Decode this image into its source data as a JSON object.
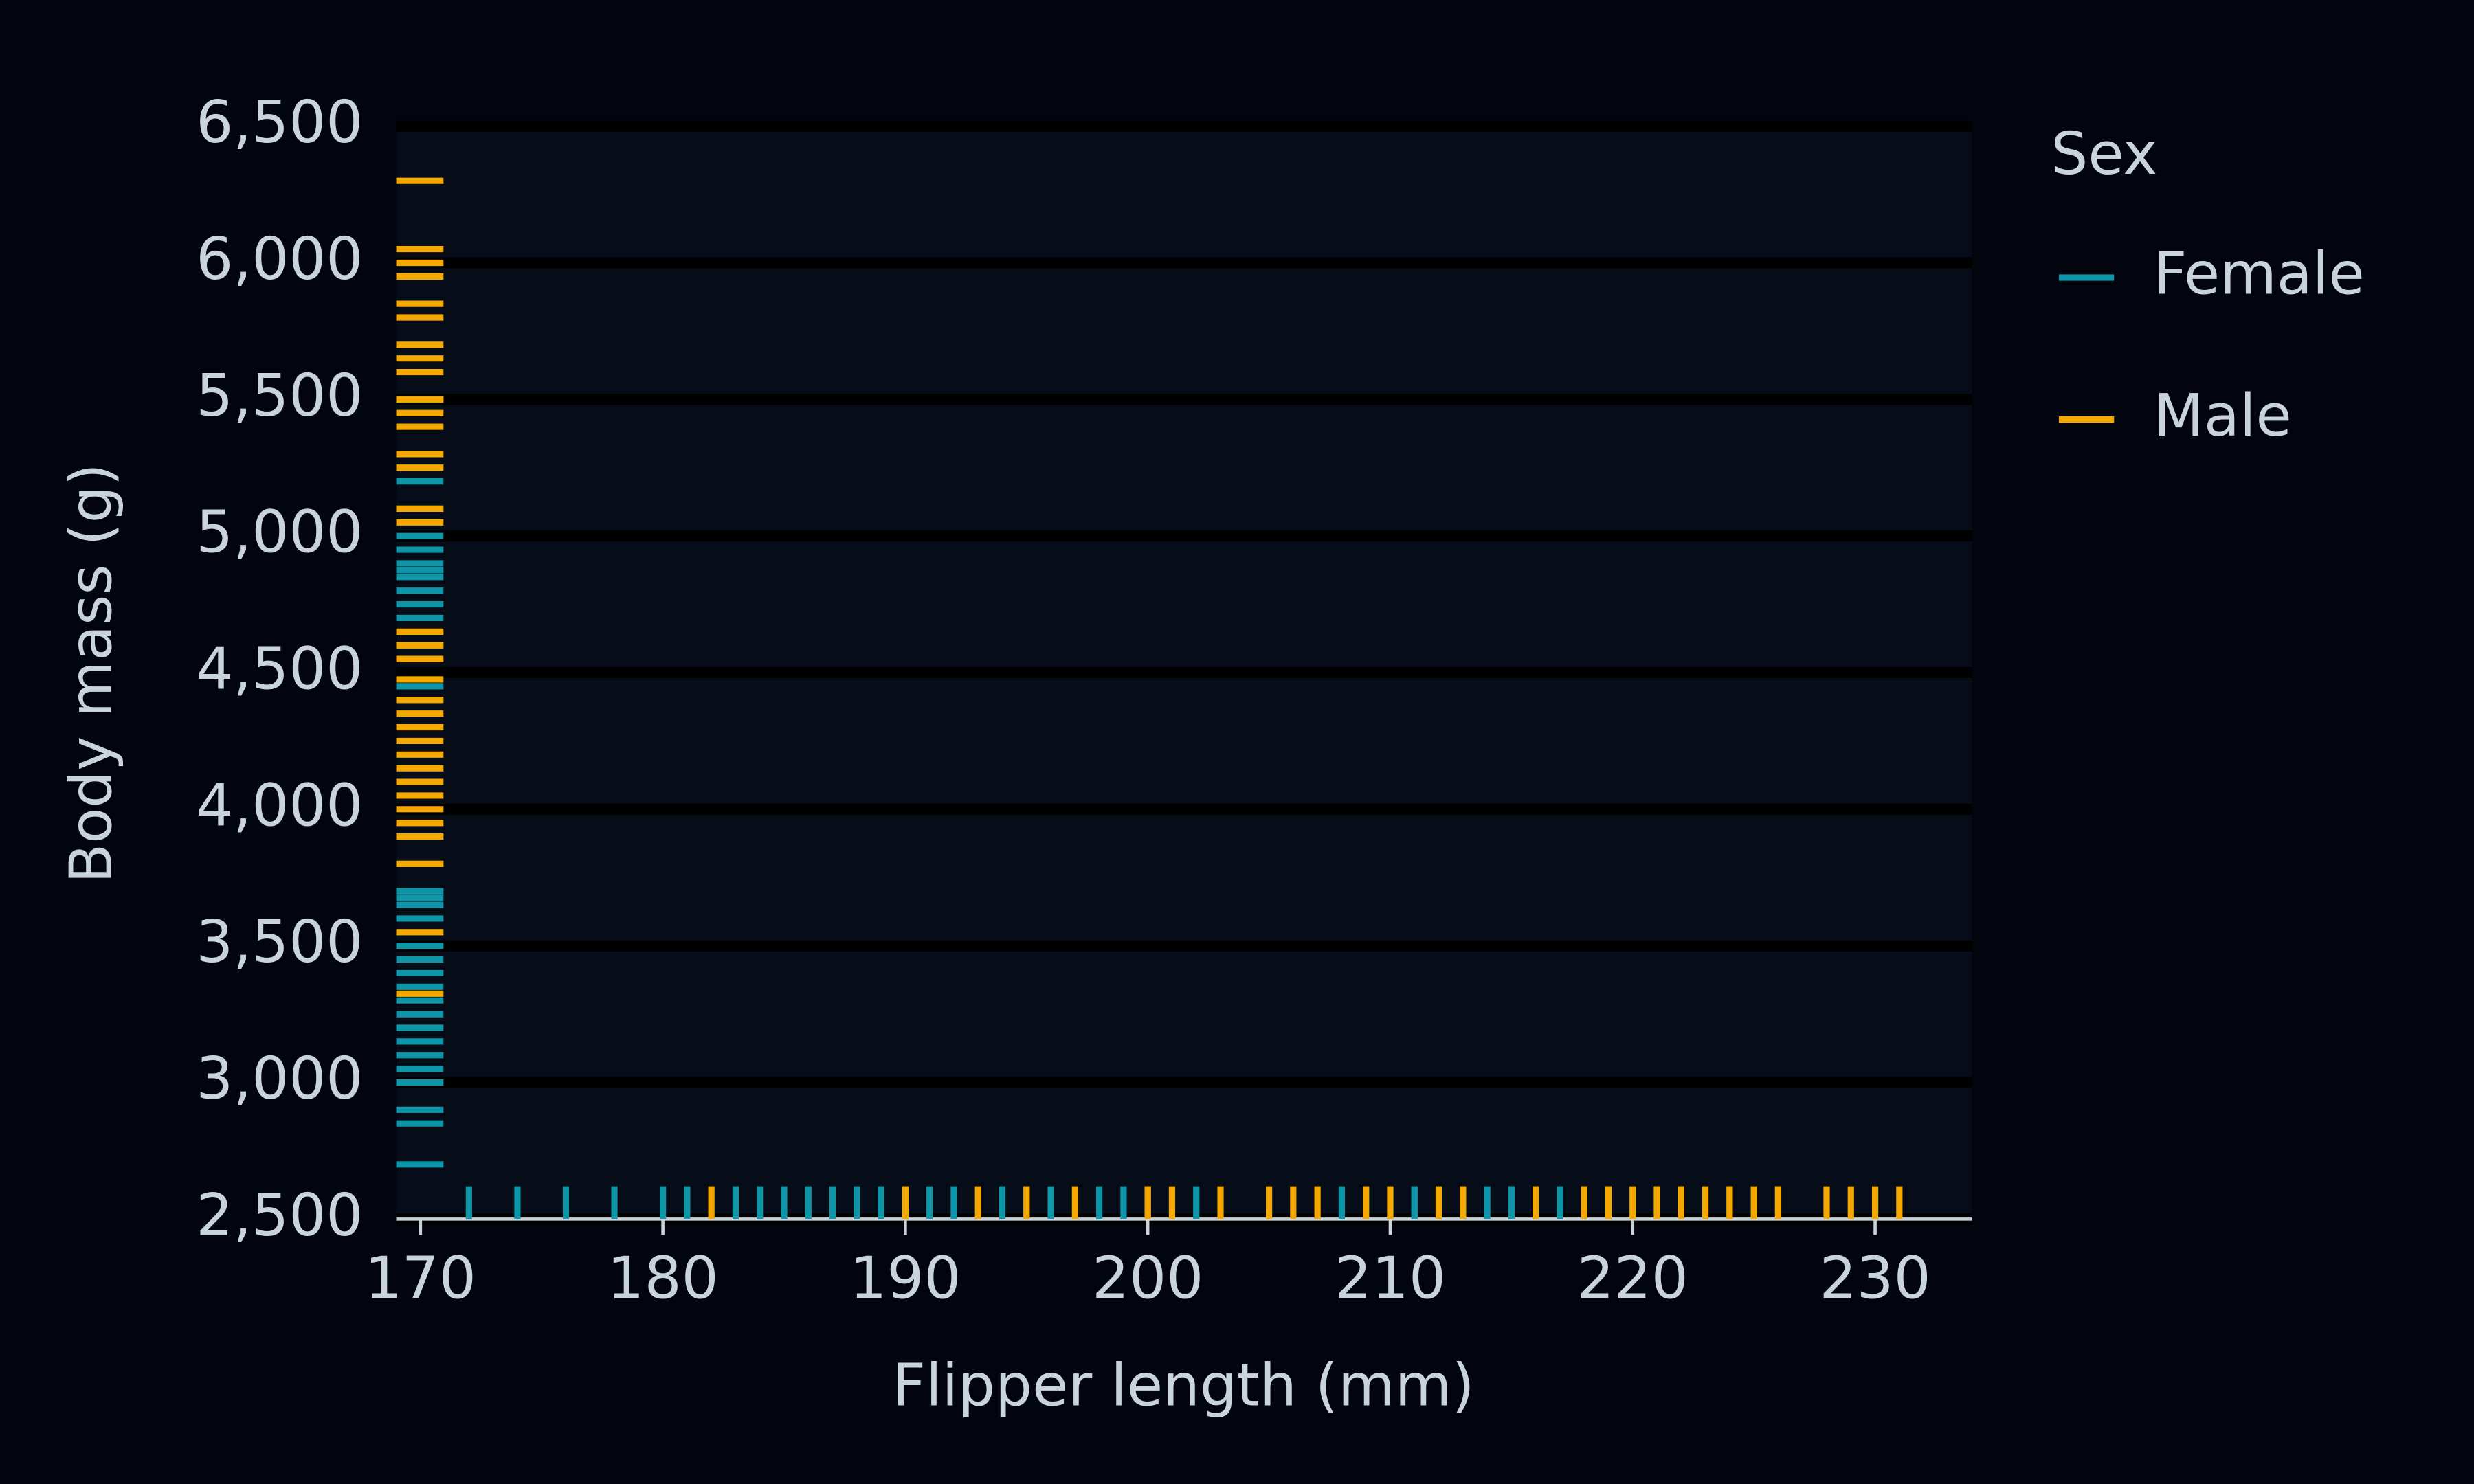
{
  "chart_data": {
    "type": "rug",
    "x_label": "Flipper length (mm)",
    "y_label": "Body mass (g)",
    "legend_title": "Sex",
    "legend": "outside upper right",
    "grid": true,
    "xlim": [
      169,
      234
    ],
    "ylim": [
      2500,
      6500
    ],
    "xticks": [
      170,
      180,
      190,
      200,
      210,
      220,
      230
    ],
    "yticks": [
      {
        "value": 2500,
        "label": "2,500"
      },
      {
        "value": 3000,
        "label": "3,000"
      },
      {
        "value": 3500,
        "label": "3,500"
      },
      {
        "value": 4000,
        "label": "4,000"
      },
      {
        "value": 4500,
        "label": "4,500"
      },
      {
        "value": 5000,
        "label": "5,000"
      },
      {
        "value": 5500,
        "label": "5,500"
      },
      {
        "value": 6000,
        "label": "6,000"
      },
      {
        "value": 6500,
        "label": "6,500"
      }
    ],
    "series": [
      {
        "name": "Female",
        "color": "#0f95a8",
        "x": [
          172,
          174,
          176,
          178,
          180,
          181,
          183,
          184,
          185,
          186,
          187,
          188,
          189,
          190,
          191,
          192,
          194,
          195,
          196,
          198,
          199,
          202,
          208,
          211,
          214,
          215,
          216,
          217,
          218,
          212,
          210,
          213,
          209,
          215,
          211
        ],
        "values": [
          3400,
          3150,
          3050,
          2700,
          3600,
          3300,
          3700,
          3350,
          3650,
          3200,
          2900,
          3000,
          3500,
          3450,
          3700,
          3250,
          3800,
          3550,
          3675,
          3100,
          2850,
          3900,
          4600,
          4450,
          4700,
          4800,
          4950,
          4900,
          5000,
          5200,
          4400,
          4750,
          5100,
          4875,
          4850
        ]
      },
      {
        "name": "Male",
        "color": "#f5a800",
        "x": [
          182,
          193,
          197,
          200,
          201,
          203,
          205,
          206,
          207,
          209,
          210,
          212,
          213,
          219,
          220,
          221,
          222,
          223,
          224,
          225,
          226,
          228,
          229,
          230,
          231,
          221,
          224,
          219,
          190,
          195,
          200,
          216,
          218,
          222,
          226
        ],
        "values": [
          3950,
          4100,
          3800,
          4300,
          4050,
          4250,
          3550,
          3325,
          4000,
          4475,
          4200,
          4650,
          4350,
          5250,
          5450,
          5600,
          5700,
          5500,
          5850,
          5300,
          5400,
          6050,
          5950,
          6300,
          5800,
          6000,
          5650,
          4400,
          3900,
          4150,
          4600,
          4550,
          5100,
          5050,
          5500
        ]
      }
    ]
  }
}
